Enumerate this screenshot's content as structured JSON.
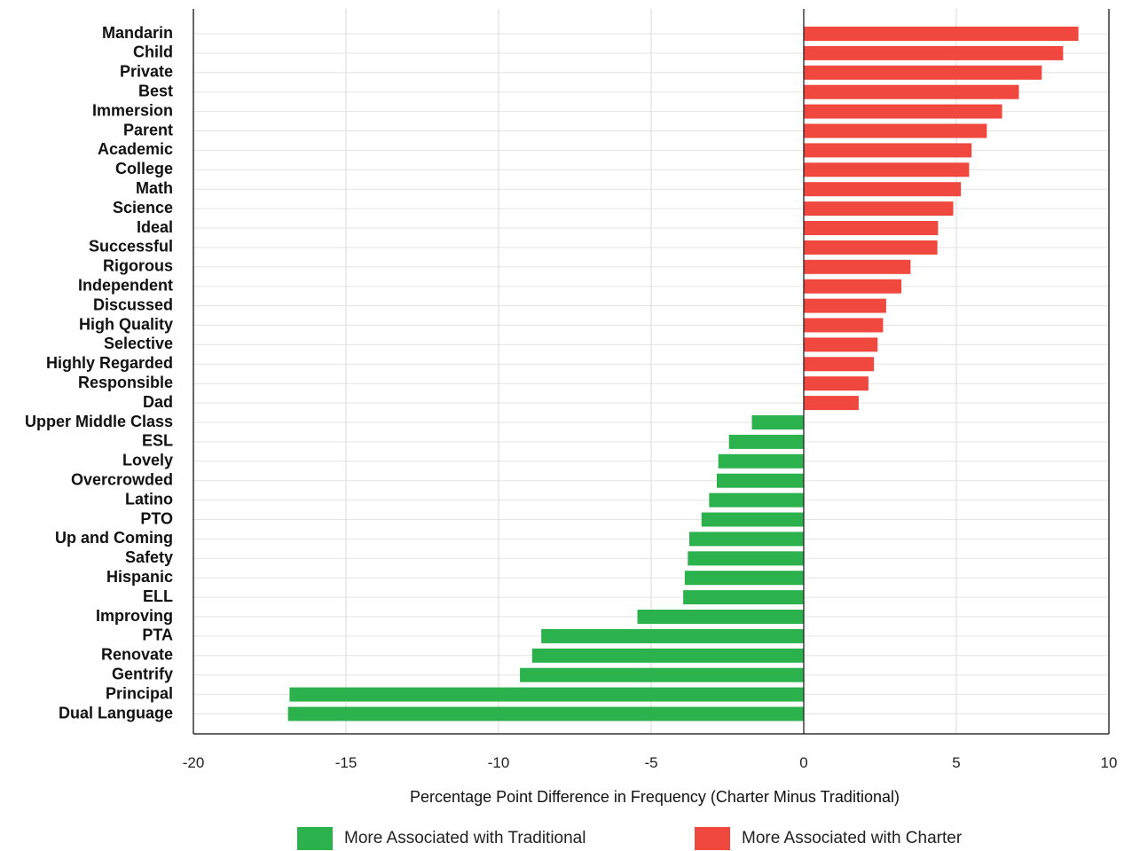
{
  "chart_data": {
    "type": "bar",
    "orientation": "horizontal",
    "xlabel": "Percentage Point Difference in Frequency (Charter Minus Traditional)",
    "ylabel": "",
    "xlim": [
      -20,
      10
    ],
    "xticks": [
      -20,
      -15,
      -10,
      -5,
      0,
      5,
      10
    ],
    "grid": true,
    "legend_placement": "bottom",
    "colors": {
      "positive": "#f0483e",
      "negative": "#2bb24c"
    },
    "legend": [
      {
        "name": "More Associated with Traditional",
        "color": "#2bb24c"
      },
      {
        "name": "More Associated with Charter",
        "color": "#f0483e"
      }
    ],
    "categories": [
      "Mandarin",
      "Child",
      "Private",
      "Best",
      "Immersion",
      "Parent",
      "Academic",
      "College",
      "Math",
      "Science",
      "Ideal",
      "Successful",
      "Rigorous",
      "Independent",
      "Discussed",
      "High Quality",
      "Selective",
      "Highly Regarded",
      "Responsible",
      "Dad",
      "Upper Middle Class",
      "ESL",
      "Lovely",
      "Overcrowded",
      "Latino",
      "PTO",
      "Up and Coming",
      "Safety",
      "Hispanic",
      "ELL",
      "Improving",
      "PTA",
      "Renovate",
      "Gentrify",
      "Principal",
      "Dual Language"
    ],
    "values": [
      9.0,
      8.5,
      7.8,
      7.05,
      6.5,
      6.0,
      5.5,
      5.42,
      5.15,
      4.9,
      4.4,
      4.38,
      3.5,
      3.2,
      2.7,
      2.6,
      2.42,
      2.3,
      2.12,
      1.8,
      -1.7,
      -2.45,
      -2.8,
      -2.85,
      -3.1,
      -3.35,
      -3.75,
      -3.8,
      -3.9,
      -3.95,
      -5.45,
      -8.6,
      -8.9,
      -9.3,
      -16.85,
      -16.9
    ]
  }
}
